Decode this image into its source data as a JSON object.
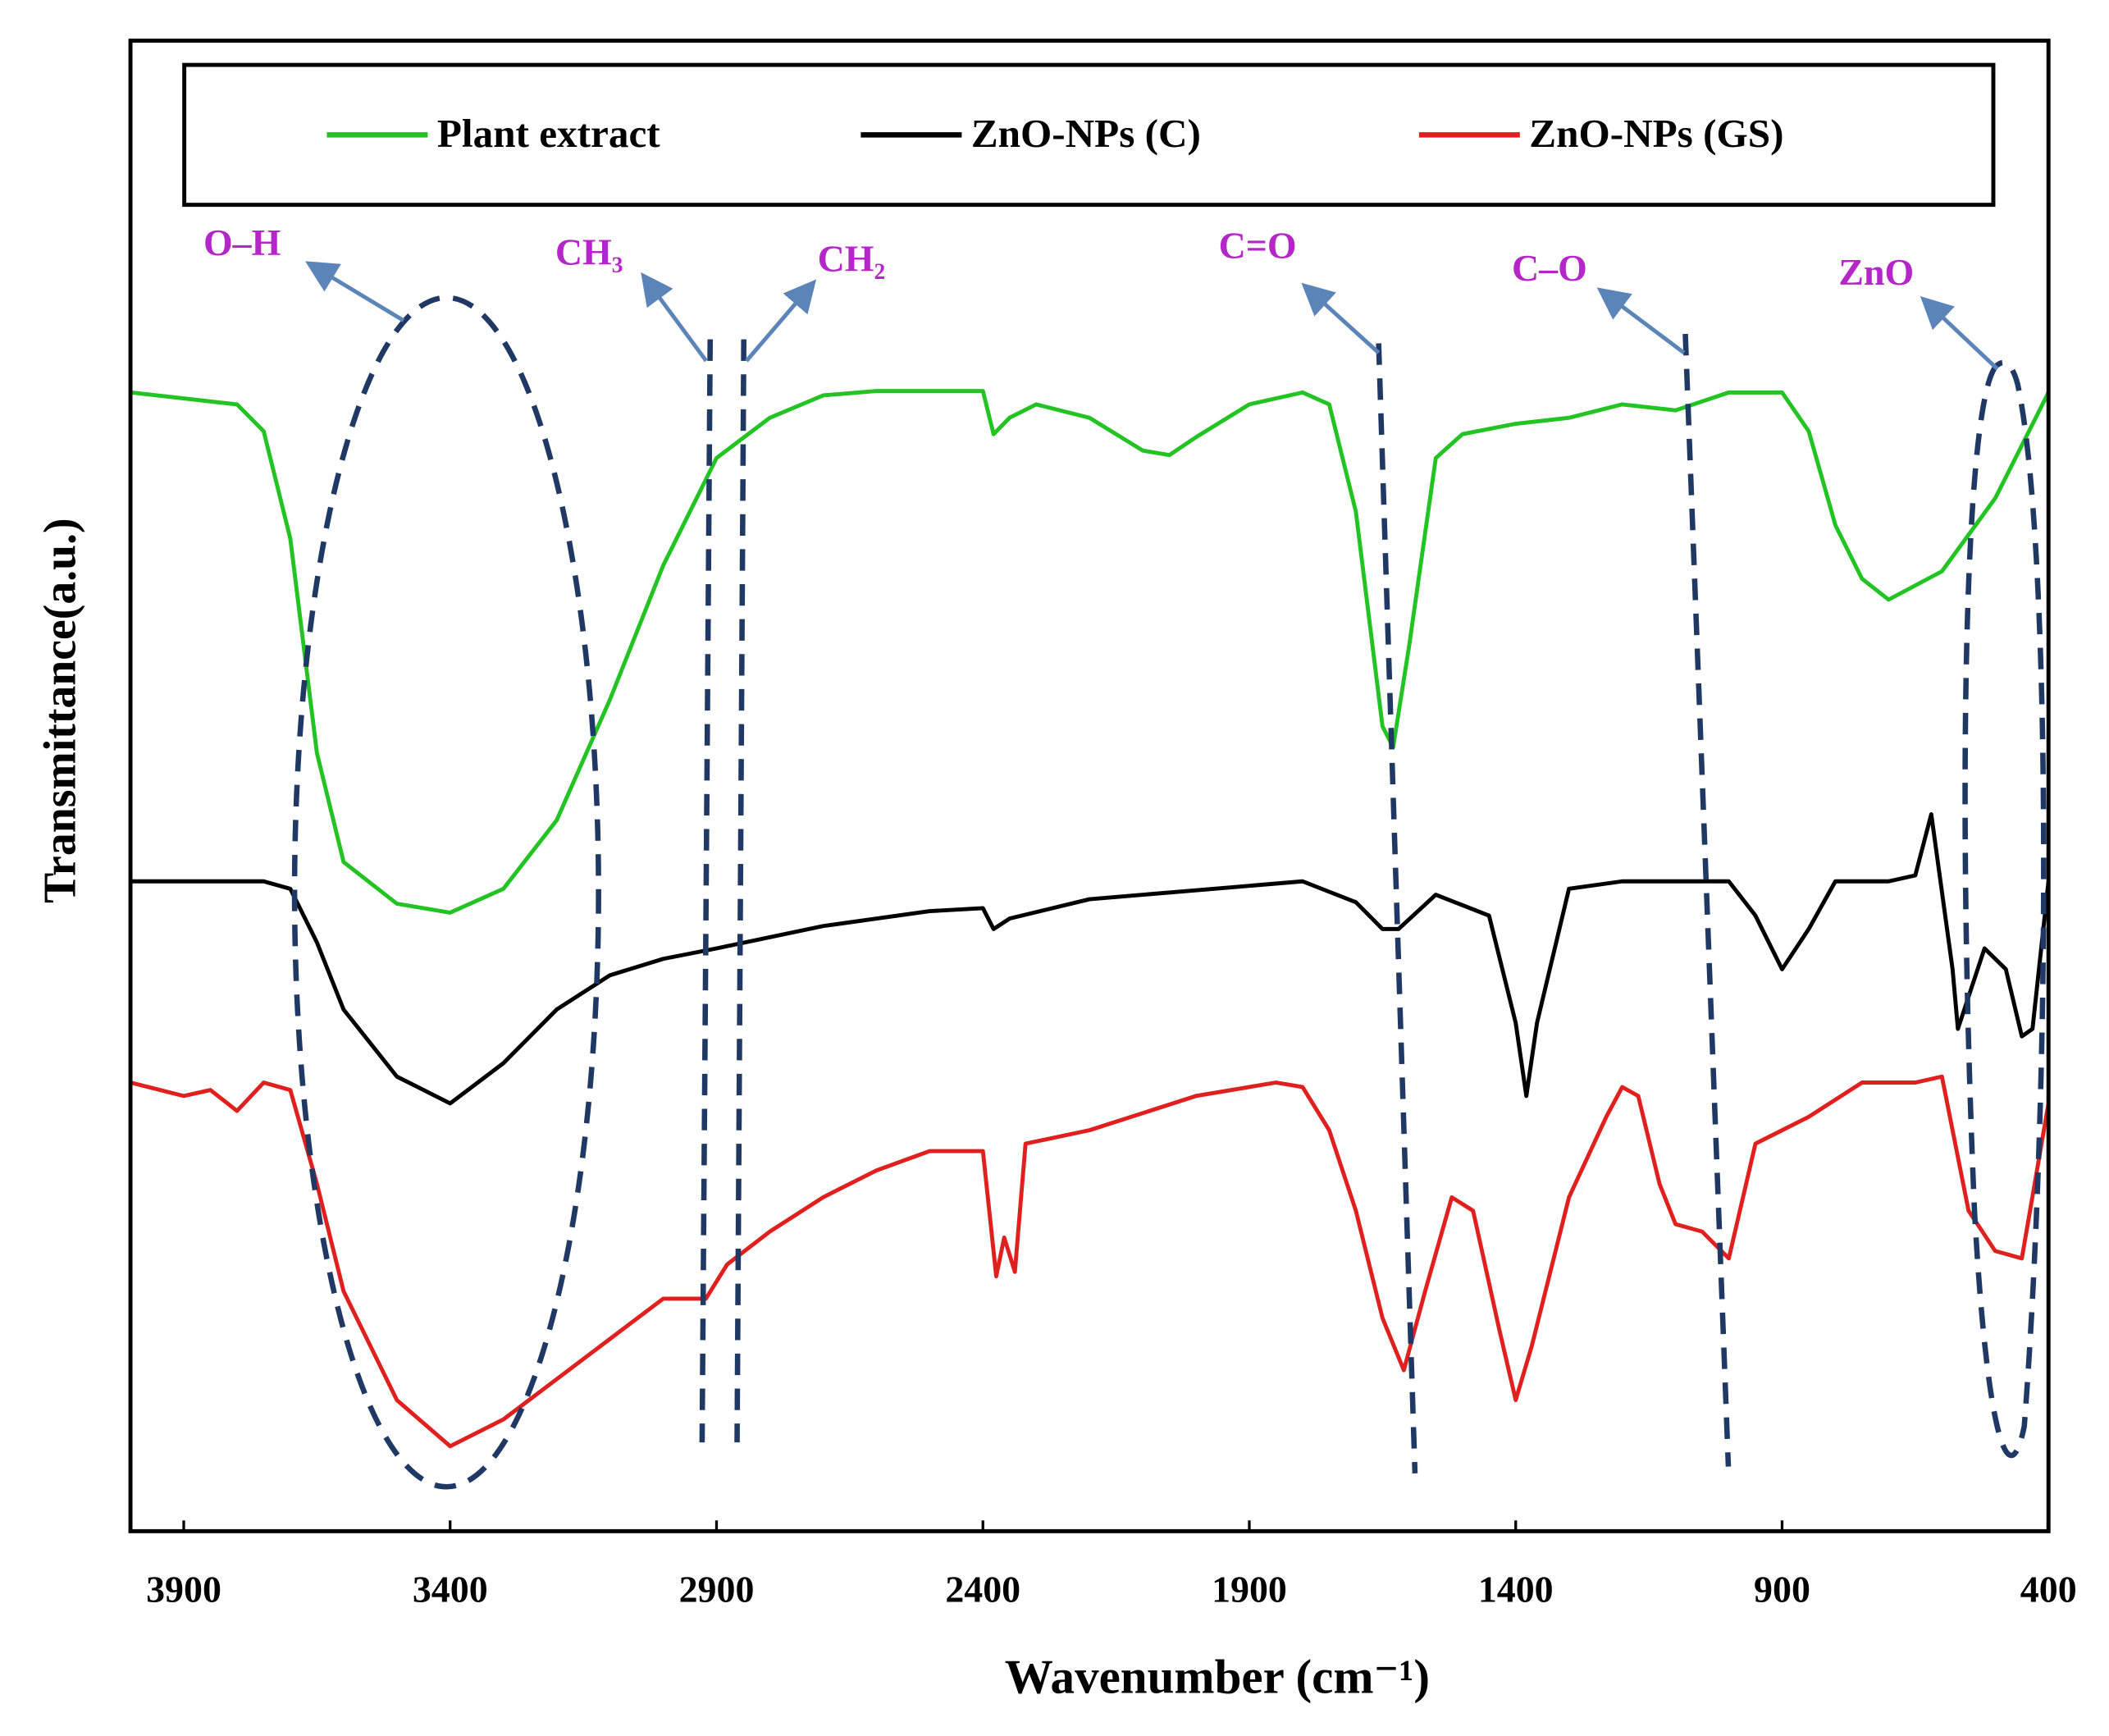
{
  "chart_data": {
    "type": "line",
    "x_label": "Wavenumber (cm⁻¹)",
    "y_label": "Transmittance(a.u.)",
    "xlim": [
      4000,
      400
    ],
    "xticks": [
      3900,
      3400,
      2900,
      2400,
      1900,
      1400,
      900,
      400
    ],
    "ylim": [
      0,
      100
    ],
    "series": [
      {
        "name": "Plant extract",
        "color": "#22c322",
        "x": [
          4000,
          3850,
          3800,
          3750,
          3700,
          3650,
          3600,
          3500,
          3400,
          3300,
          3200,
          3100,
          3000,
          2900,
          2800,
          2700,
          2600,
          2400,
          2380,
          2350,
          2300,
          2200,
          2100,
          2050,
          2000,
          1900,
          1800,
          1750,
          1700,
          1650,
          1630,
          1600,
          1550,
          1500,
          1400,
          1300,
          1200,
          1100,
          1000,
          900,
          850,
          800,
          750,
          700,
          600,
          500,
          400
        ],
        "values": [
          76.4,
          75.8,
          75.6,
          73.8,
          66.6,
          52.2,
          44.9,
          42.1,
          41.5,
          43.1,
          47.7,
          55.8,
          64.8,
          72.0,
          74.7,
          76.2,
          76.5,
          76.5,
          73.6,
          74.7,
          75.6,
          74.7,
          72.5,
          72.2,
          73.4,
          75.6,
          76.4,
          75.6,
          68.4,
          54.0,
          52.6,
          59.4,
          72.0,
          73.6,
          74.3,
          74.7,
          75.6,
          75.2,
          76.4,
          76.4,
          73.8,
          67.5,
          63.9,
          62.5,
          64.4,
          69.3,
          76.4
        ]
      },
      {
        "name": "ZnO-NPs (C)",
        "color": "#000000",
        "x": [
          4000,
          3800,
          3750,
          3700,
          3650,
          3600,
          3500,
          3400,
          3300,
          3200,
          3100,
          3000,
          2900,
          2700,
          2500,
          2400,
          2380,
          2350,
          2200,
          2000,
          1800,
          1700,
          1650,
          1620,
          1550,
          1450,
          1400,
          1380,
          1360,
          1300,
          1200,
          1000,
          950,
          900,
          850,
          800,
          700,
          650,
          620,
          580,
          570,
          520,
          480,
          450,
          430,
          400
        ],
        "values": [
          43.6,
          43.6,
          43.6,
          43.1,
          39.5,
          35.0,
          30.5,
          28.7,
          31.4,
          35.0,
          37.3,
          38.4,
          39.1,
          40.6,
          41.6,
          41.8,
          40.4,
          41.1,
          42.4,
          43.0,
          43.6,
          42.2,
          40.4,
          40.4,
          42.7,
          41.3,
          34.1,
          29.2,
          34.1,
          43.1,
          43.6,
          43.6,
          41.3,
          37.7,
          40.4,
          43.6,
          43.6,
          44.0,
          48.1,
          37.7,
          33.7,
          39.1,
          37.7,
          33.2,
          33.7,
          43.6
        ]
      },
      {
        "name": "ZnO-NPs (GS)",
        "color": "#e0201e",
        "x": [
          4000,
          3900,
          3850,
          3800,
          3750,
          3700,
          3650,
          3600,
          3500,
          3400,
          3300,
          3200,
          3100,
          3000,
          2920,
          2880,
          2800,
          2700,
          2600,
          2500,
          2400,
          2375,
          2360,
          2340,
          2320,
          2200,
          2000,
          1850,
          1800,
          1750,
          1700,
          1650,
          1610,
          1570,
          1520,
          1480,
          1430,
          1400,
          1370,
          1300,
          1230,
          1200,
          1170,
          1130,
          1100,
          1050,
          1000,
          950,
          850,
          750,
          650,
          600,
          550,
          500,
          450,
          400
        ],
        "values": [
          30.1,
          29.2,
          29.6,
          28.2,
          30.1,
          29.6,
          23.3,
          16.1,
          8.8,
          5.7,
          7.5,
          10.2,
          12.9,
          15.6,
          15.6,
          17.9,
          20.1,
          22.4,
          24.2,
          25.5,
          25.5,
          17.1,
          19.7,
          17.4,
          26.0,
          26.9,
          29.2,
          30.1,
          29.8,
          26.9,
          21.5,
          14.3,
          10.8,
          16.1,
          22.4,
          21.5,
          13.4,
          8.8,
          12.4,
          22.4,
          27.8,
          29.8,
          29.2,
          23.3,
          20.6,
          20.1,
          18.3,
          26.0,
          27.8,
          30.1,
          30.1,
          30.5,
          21.5,
          18.8,
          18.3,
          28.7
        ]
      }
    ],
    "annotations": [
      "O–H",
      "CH₃",
      "CH₂",
      "C=O",
      "C–O",
      "ZnO"
    ]
  }
}
